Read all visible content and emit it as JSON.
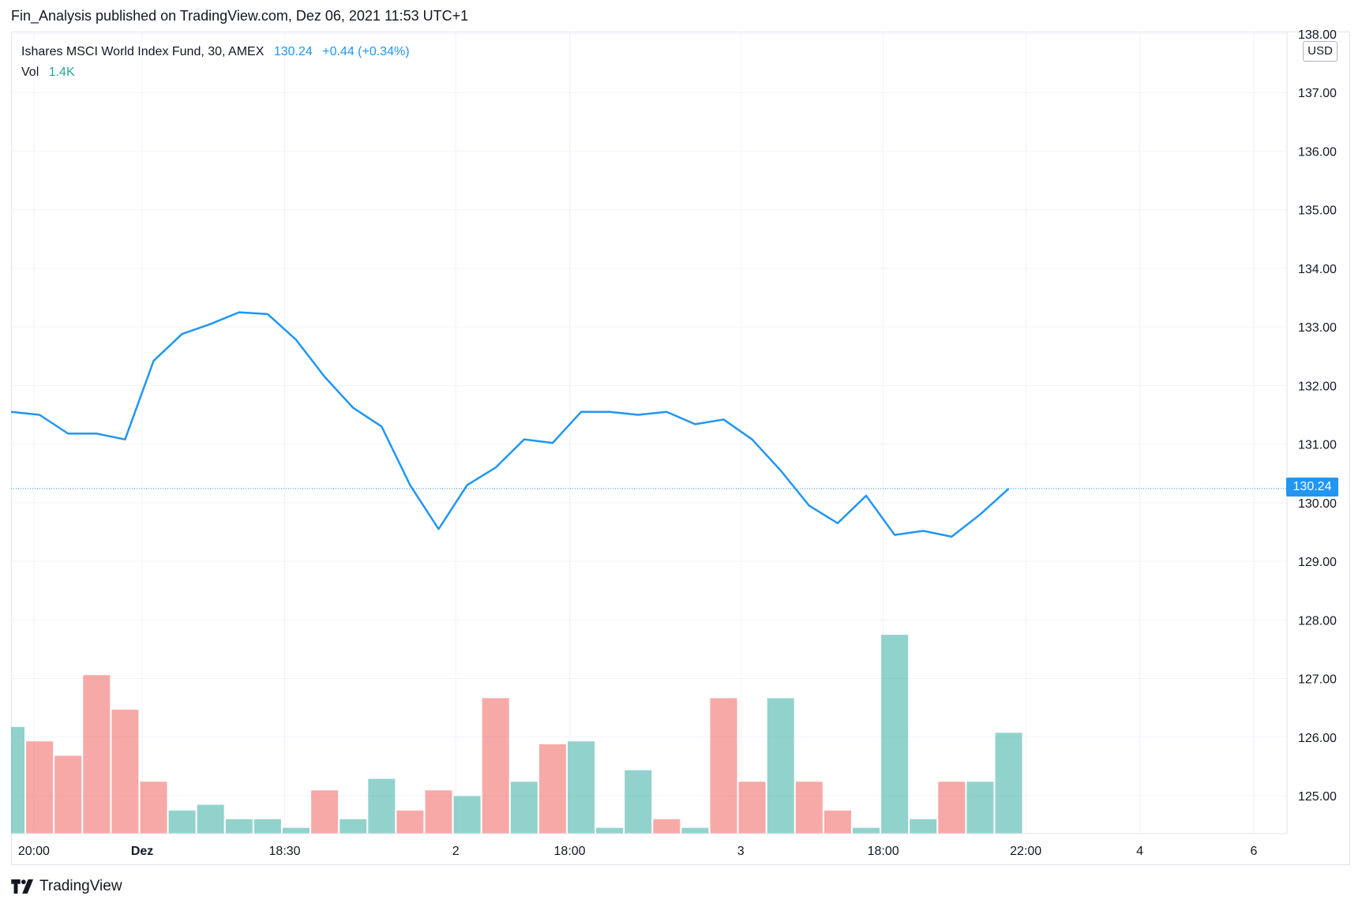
{
  "header": {
    "published_text": "Fin_Analysis published on TradingView.com, Dez 06, 2021 11:53 UTC+1"
  },
  "legend": {
    "symbol": "Ishares MSCI World Index Fund, 30, AMEX",
    "last": "130.24",
    "change": "+0.44 (+0.34%)",
    "vol_label": "Vol",
    "vol_value": "1.4K"
  },
  "price_axis": {
    "currency": "USD",
    "current_price_label": "130.24"
  },
  "footer": {
    "brand": "TradingView"
  },
  "colors": {
    "line": "#2196f3",
    "vol_up": "#26a69a",
    "vol_down": "#ef5350",
    "grid": "#f0f3fa"
  },
  "chart_data": {
    "type": "line",
    "title": "Ishares MSCI World Index Fund, 30, AMEX",
    "ylim": [
      124.3,
      138.0
    ],
    "y_ticks": [
      "125.00",
      "126.00",
      "127.00",
      "128.00",
      "129.00",
      "130.00",
      "131.00",
      "132.00",
      "133.00",
      "134.00",
      "135.00",
      "136.00",
      "137.00",
      "138.00"
    ],
    "x_tick_labels": [
      "20:00",
      "Dez",
      "18:30",
      "2",
      "18:00",
      "3",
      "18:00",
      "22:00",
      "4",
      "6"
    ],
    "x_tick_index": [
      0.8,
      4.6,
      9.6,
      15.6,
      19.6,
      25.6,
      30.6,
      35.6,
      39.6,
      43.6
    ],
    "current_price": 130.24,
    "series": [
      {
        "values": [
          131.55,
          131.5,
          131.18,
          131.18,
          131.08,
          132.42,
          132.88,
          133.05,
          133.25,
          133.22,
          132.78,
          132.15,
          131.62,
          131.3,
          130.3,
          129.55,
          130.3,
          130.6,
          131.08,
          131.02,
          131.55,
          131.55,
          131.5,
          131.55,
          131.34,
          131.42,
          131.08,
          130.55,
          129.95,
          129.65,
          130.12,
          129.45,
          129.52,
          129.42,
          129.8,
          130.24
        ]
      },
      {
        "values": [
          1.85,
          1.6,
          1.35,
          2.75,
          2.15,
          0.9,
          0.4,
          0.5,
          0.25,
          0.25,
          0.1,
          0.75,
          0.25,
          0.95,
          0.4,
          0.75,
          0.65,
          2.35,
          0.9,
          1.55,
          1.6,
          0.1,
          1.1,
          0.25,
          0.1,
          2.35,
          0.9,
          2.35,
          0.9,
          0.4,
          0.1,
          3.45,
          0.25,
          0.9,
          0.9,
          1.75
        ],
        "directions": [
          "up",
          "down",
          "down",
          "down",
          "down",
          "down",
          "up",
          "up",
          "up",
          "up",
          "up",
          "down",
          "up",
          "up",
          "down",
          "down",
          "up",
          "down",
          "up",
          "down",
          "up",
          "up",
          "up",
          "down",
          "up",
          "down",
          "down",
          "up",
          "down",
          "down",
          "up",
          "up",
          "up",
          "down",
          "up",
          "up"
        ]
      }
    ],
    "grid": true
  }
}
